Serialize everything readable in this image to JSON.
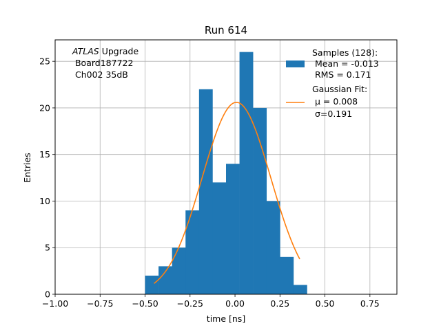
{
  "chart_data": {
    "type": "bar",
    "title": "Run 614",
    "xlabel": "time [ns]",
    "ylabel": "Entries",
    "xlim": [
      -1.0,
      0.9
    ],
    "ylim": [
      0,
      27.3
    ],
    "grid": true,
    "x_ticks": [
      -1.0,
      -0.75,
      -0.5,
      -0.25,
      0.0,
      0.25,
      0.5,
      0.75
    ],
    "x_tick_labels": [
      "−1.00",
      "−0.75",
      "−0.50",
      "−0.25",
      "0.00",
      "0.25",
      "0.50",
      "0.75"
    ],
    "y_ticks": [
      0,
      5,
      10,
      15,
      20,
      25
    ],
    "y_tick_labels": [
      "0",
      "5",
      "10",
      "15",
      "20",
      "25"
    ],
    "histogram": {
      "bin_edges": [
        -0.5,
        -0.425,
        -0.35,
        -0.275,
        -0.2,
        -0.125,
        -0.05,
        0.025,
        0.1,
        0.175,
        0.25,
        0.325,
        0.4
      ],
      "counts": [
        2,
        3,
        5,
        9,
        22,
        12,
        14,
        26,
        20,
        10,
        4,
        1
      ],
      "color": "#1f77b4"
    },
    "fit": {
      "mu": 0.008,
      "sigma": 0.191,
      "amplitude": 20.6,
      "x_range": [
        -0.45,
        0.36
      ],
      "color": "#ff7f0e"
    },
    "annotation": {
      "lines": [
        {
          "italic": "ATLAS",
          "text": " Upgrade"
        },
        {
          "italic": "",
          "text": " Board187722"
        },
        {
          "italic": "",
          "text": " Ch002 35dB"
        }
      ]
    },
    "legend": {
      "placement": "top-right",
      "entries": [
        {
          "kind": "patch",
          "lines": [
            "Samples (128):",
            " Mean = -0.013",
            " RMS = 0.171"
          ]
        },
        {
          "kind": "line",
          "lines": [
            "Gaussian Fit:",
            " μ = 0.008",
            " σ=0.191"
          ]
        }
      ]
    }
  }
}
